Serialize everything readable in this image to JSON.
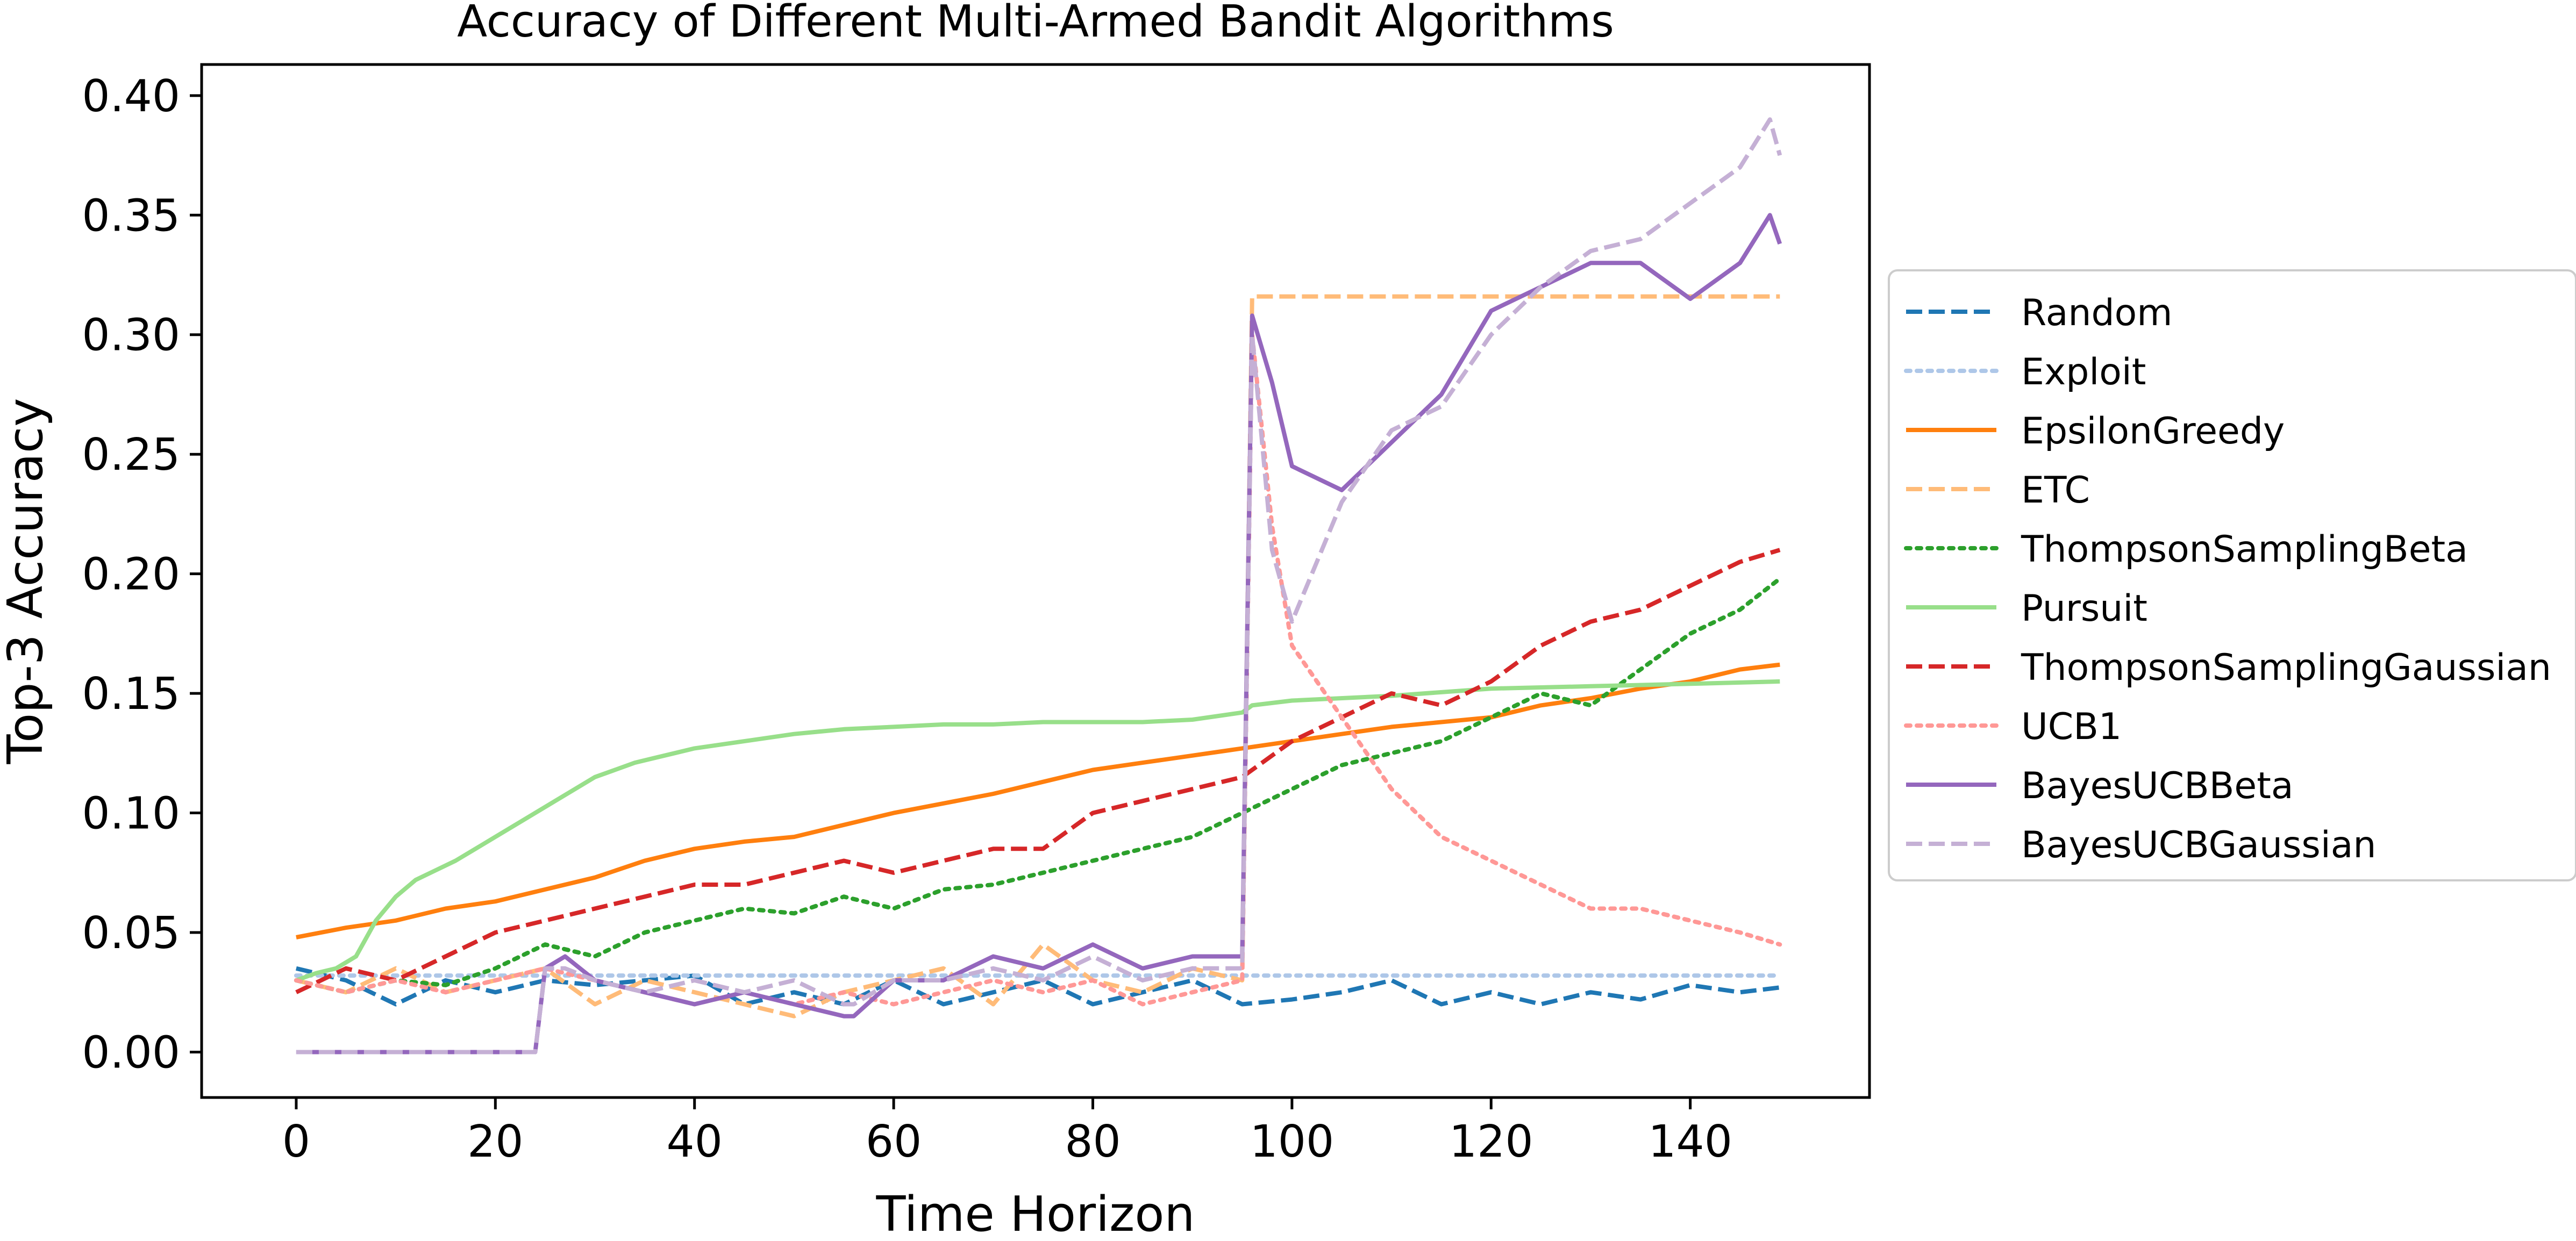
{
  "chart_data": {
    "type": "line",
    "title": "Accuracy of Different Multi-Armed Bandit Algorithms",
    "xlabel": "Time Horizon",
    "ylabel": "Top-3 Accuracy",
    "xlim": [
      -9.5,
      158
    ],
    "ylim": [
      -0.019,
      0.413
    ],
    "xticks": [
      0,
      20,
      40,
      60,
      80,
      100,
      120,
      140
    ],
    "xtick_labels": [
      "0",
      "20",
      "40",
      "60",
      "80",
      "100",
      "120",
      "140"
    ],
    "yticks": [
      0.0,
      0.05,
      0.1,
      0.15,
      0.2,
      0.25,
      0.3,
      0.35,
      0.4
    ],
    "ytick_labels": [
      "0.00",
      "0.05",
      "0.10",
      "0.15",
      "0.20",
      "0.25",
      "0.30",
      "0.35",
      "0.40"
    ],
    "grid": false,
    "legend_position": "outside-right",
    "series": [
      {
        "name": "Random",
        "color": "#1f77b4",
        "dash": "dashed",
        "width": 8,
        "x": [
          0,
          5,
          10,
          15,
          20,
          25,
          30,
          35,
          40,
          45,
          50,
          55,
          60,
          65,
          70,
          75,
          80,
          85,
          90,
          95,
          100,
          105,
          110,
          115,
          120,
          125,
          130,
          135,
          140,
          145,
          149
        ],
        "y": [
          0.035,
          0.03,
          0.02,
          0.03,
          0.025,
          0.03,
          0.028,
          0.03,
          0.032,
          0.02,
          0.025,
          0.02,
          0.03,
          0.02,
          0.025,
          0.03,
          0.02,
          0.025,
          0.03,
          0.02,
          0.022,
          0.025,
          0.03,
          0.02,
          0.025,
          0.02,
          0.025,
          0.022,
          0.028,
          0.025,
          0.027
        ]
      },
      {
        "name": "Exploit",
        "color": "#aec7e8",
        "dash": "dotted",
        "width": 8,
        "x": [
          0,
          149
        ],
        "y": [
          0.032,
          0.032
        ]
      },
      {
        "name": "EpsilonGreedy",
        "color": "#ff7f0e",
        "dash": "solid",
        "width": 8,
        "x": [
          0,
          5,
          10,
          15,
          20,
          25,
          30,
          35,
          40,
          45,
          50,
          55,
          60,
          65,
          70,
          75,
          80,
          85,
          90,
          95,
          100,
          105,
          110,
          115,
          120,
          125,
          130,
          135,
          140,
          145,
          149
        ],
        "y": [
          0.048,
          0.052,
          0.055,
          0.06,
          0.063,
          0.068,
          0.073,
          0.08,
          0.085,
          0.088,
          0.09,
          0.095,
          0.1,
          0.104,
          0.108,
          0.113,
          0.118,
          0.121,
          0.124,
          0.127,
          0.13,
          0.133,
          0.136,
          0.138,
          0.14,
          0.145,
          0.148,
          0.152,
          0.155,
          0.16,
          0.162
        ]
      },
      {
        "name": "ETC",
        "color": "#ffbb78",
        "dash": "dashed",
        "width": 8,
        "x": [
          0,
          5,
          10,
          15,
          20,
          25,
          30,
          35,
          40,
          45,
          50,
          55,
          60,
          65,
          70,
          75,
          80,
          85,
          90,
          95,
          96,
          100,
          110,
          120,
          130,
          140,
          149
        ],
        "y": [
          0.03,
          0.025,
          0.035,
          0.025,
          0.03,
          0.035,
          0.02,
          0.03,
          0.025,
          0.02,
          0.015,
          0.025,
          0.03,
          0.035,
          0.02,
          0.045,
          0.03,
          0.025,
          0.035,
          0.03,
          0.316,
          0.316,
          0.316,
          0.316,
          0.316,
          0.316,
          0.316
        ]
      },
      {
        "name": "ThompsonSamplingBeta",
        "color": "#2ca02c",
        "dash": "dotted",
        "width": 8,
        "x": [
          0,
          5,
          10,
          15,
          20,
          25,
          30,
          35,
          40,
          45,
          50,
          55,
          60,
          65,
          70,
          75,
          80,
          85,
          90,
          95,
          100,
          105,
          110,
          115,
          120,
          125,
          130,
          135,
          140,
          145,
          149
        ],
        "y": [
          0.03,
          0.025,
          0.03,
          0.028,
          0.035,
          0.045,
          0.04,
          0.05,
          0.055,
          0.06,
          0.058,
          0.065,
          0.06,
          0.068,
          0.07,
          0.075,
          0.08,
          0.085,
          0.09,
          0.1,
          0.11,
          0.12,
          0.125,
          0.13,
          0.14,
          0.15,
          0.145,
          0.16,
          0.175,
          0.185,
          0.198
        ]
      },
      {
        "name": "Pursuit",
        "color": "#98df8a",
        "dash": "solid",
        "width": 8,
        "x": [
          0,
          2,
          4,
          6,
          8,
          10,
          12,
          14,
          16,
          18,
          20,
          22,
          24,
          26,
          28,
          30,
          32,
          34,
          36,
          38,
          40,
          45,
          50,
          55,
          60,
          65,
          70,
          75,
          80,
          85,
          90,
          95,
          96,
          100,
          110,
          120,
          130,
          140,
          149
        ],
        "y": [
          0.03,
          0.033,
          0.035,
          0.04,
          0.055,
          0.065,
          0.072,
          0.076,
          0.08,
          0.085,
          0.09,
          0.095,
          0.1,
          0.105,
          0.11,
          0.115,
          0.118,
          0.121,
          0.123,
          0.125,
          0.127,
          0.13,
          0.133,
          0.135,
          0.136,
          0.137,
          0.137,
          0.138,
          0.138,
          0.138,
          0.139,
          0.142,
          0.145,
          0.147,
          0.149,
          0.152,
          0.153,
          0.154,
          0.155
        ]
      },
      {
        "name": "ThompsonSamplingGaussian",
        "color": "#d62728",
        "dash": "dashed",
        "width": 8,
        "x": [
          0,
          5,
          10,
          15,
          20,
          25,
          30,
          35,
          40,
          45,
          50,
          55,
          60,
          65,
          70,
          75,
          80,
          85,
          90,
          95,
          100,
          105,
          110,
          115,
          120,
          125,
          130,
          135,
          140,
          145,
          149
        ],
        "y": [
          0.025,
          0.035,
          0.03,
          0.04,
          0.05,
          0.055,
          0.06,
          0.065,
          0.07,
          0.07,
          0.075,
          0.08,
          0.075,
          0.08,
          0.085,
          0.085,
          0.1,
          0.105,
          0.11,
          0.115,
          0.13,
          0.14,
          0.15,
          0.145,
          0.155,
          0.17,
          0.18,
          0.185,
          0.195,
          0.205,
          0.21
        ]
      },
      {
        "name": "UCB1",
        "color": "#ff9896",
        "dash": "dotted",
        "width": 8,
        "x": [
          0,
          5,
          10,
          15,
          20,
          25,
          30,
          35,
          40,
          45,
          50,
          55,
          60,
          65,
          70,
          75,
          80,
          85,
          90,
          95,
          96,
          98,
          100,
          105,
          110,
          115,
          120,
          125,
          130,
          135,
          140,
          145,
          149
        ],
        "y": [
          0.03,
          0.025,
          0.03,
          0.025,
          0.03,
          0.035,
          0.03,
          0.025,
          0.02,
          0.025,
          0.02,
          0.025,
          0.02,
          0.025,
          0.03,
          0.025,
          0.03,
          0.02,
          0.025,
          0.03,
          0.3,
          0.22,
          0.17,
          0.14,
          0.11,
          0.09,
          0.08,
          0.07,
          0.06,
          0.06,
          0.055,
          0.05,
          0.045
        ]
      },
      {
        "name": "BayesUCBBeta",
        "color": "#9467bd",
        "dash": "solid",
        "width": 8,
        "x": [
          0,
          24,
          25,
          27,
          30,
          35,
          40,
          45,
          50,
          55,
          56,
          60,
          65,
          70,
          75,
          80,
          85,
          90,
          95,
          96,
          98,
          100,
          105,
          110,
          115,
          120,
          125,
          130,
          135,
          140,
          145,
          148,
          149
        ],
        "y": [
          0.0,
          0.0,
          0.035,
          0.04,
          0.03,
          0.025,
          0.02,
          0.025,
          0.02,
          0.015,
          0.015,
          0.03,
          0.03,
          0.04,
          0.035,
          0.045,
          0.035,
          0.04,
          0.04,
          0.308,
          0.28,
          0.245,
          0.235,
          0.255,
          0.275,
          0.31,
          0.32,
          0.33,
          0.33,
          0.315,
          0.33,
          0.35,
          0.338
        ]
      },
      {
        "name": "BayesUCBGaussian",
        "color": "#c5b0d5",
        "dash": "dashed",
        "width": 8,
        "x": [
          0,
          24,
          25,
          27,
          30,
          35,
          40,
          45,
          50,
          55,
          56,
          60,
          65,
          70,
          75,
          80,
          85,
          90,
          95,
          96,
          98,
          100,
          105,
          110,
          115,
          120,
          125,
          130,
          135,
          140,
          145,
          148,
          149
        ],
        "y": [
          0.0,
          0.0,
          0.035,
          0.035,
          0.03,
          0.025,
          0.03,
          0.025,
          0.03,
          0.02,
          0.02,
          0.03,
          0.03,
          0.035,
          0.03,
          0.04,
          0.03,
          0.035,
          0.035,
          0.3,
          0.21,
          0.18,
          0.23,
          0.26,
          0.27,
          0.3,
          0.32,
          0.335,
          0.34,
          0.355,
          0.37,
          0.39,
          0.375
        ]
      }
    ]
  }
}
